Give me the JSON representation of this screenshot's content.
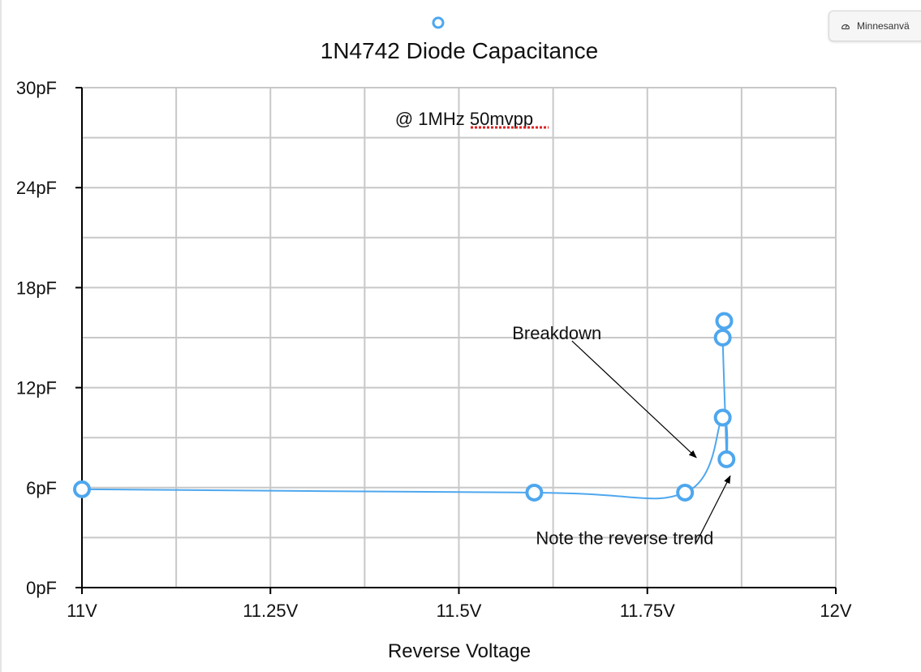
{
  "colors": {
    "series": "#4ea7ee",
    "grid": "#c8c8c8",
    "axis": "#000000",
    "squiggle": "#e02020"
  },
  "memory_pill": {
    "icon": "gauge-icon",
    "label": "Minnesanvä"
  },
  "chart_data": {
    "type": "line",
    "title": "1N4742 Diode Capacitance",
    "subtitle": "@ 1MHz 50mvpp",
    "xlabel": "Reverse Voltage",
    "ylabel": "",
    "xlim": [
      11,
      12
    ],
    "ylim": [
      0,
      30
    ],
    "x_ticks": [
      11,
      11.25,
      11.5,
      11.75,
      12
    ],
    "x_tick_labels": [
      "11V",
      "11.25V",
      "11.5V",
      "11.75V",
      "12V"
    ],
    "y_ticks": [
      0,
      6,
      12,
      18,
      24,
      30
    ],
    "y_tick_labels": [
      "0pF",
      "6pF",
      "12pF",
      "18pF",
      "24pF",
      "30pF"
    ],
    "grid": true,
    "legend_position": "top",
    "smooth": true,
    "series": [
      {
        "name": "",
        "x": [
          11.0,
          11.6,
          11.8,
          11.85,
          11.855,
          11.85,
          11.852
        ],
        "y": [
          5.9,
          5.7,
          5.7,
          10.2,
          7.7,
          15.0,
          16.0
        ]
      }
    ],
    "annotations": [
      {
        "text": "Breakdown",
        "text_x": 11.63,
        "text_y": 14.9,
        "arrow_from": [
          11.65,
          14.8
        ],
        "arrow_to": [
          11.815,
          7.8
        ]
      },
      {
        "text": "Note the reverse trend",
        "text_x": 11.72,
        "text_y": 2.6,
        "arrow_from": [
          11.815,
          2.7
        ],
        "arrow_to": [
          11.86,
          6.7
        ]
      }
    ]
  }
}
